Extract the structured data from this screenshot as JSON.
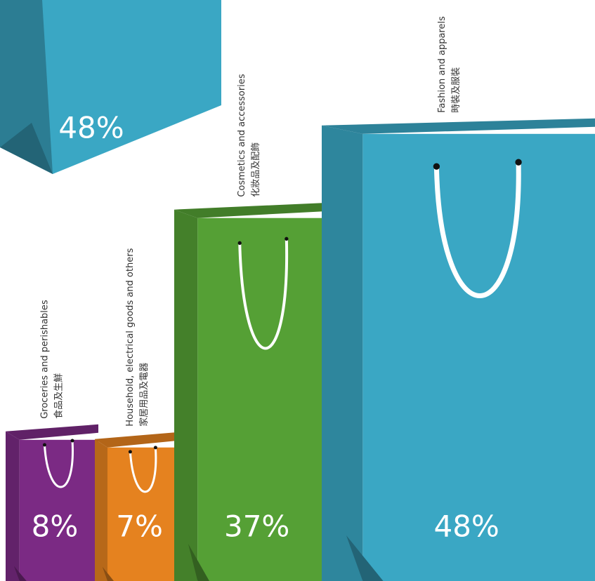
{
  "chart_data": {
    "type": "bag",
    "categories": [
      "Groceries and perishables",
      "Household, electrical goods and others",
      "Cosmetics and accessories",
      "Fashion and apparels"
    ],
    "categories_zh": [
      "食品及生鮮",
      "家居用品及電器",
      "化妝品及配飾",
      "時裝及服裝"
    ],
    "values": [
      8,
      7,
      37,
      48
    ],
    "value_labels": [
      "8%",
      "7%",
      "37%",
      "48%"
    ],
    "colors": [
      "#7b2a84",
      "#e5821f",
      "#55a035",
      "#3aa7c4"
    ]
  },
  "header_bag": {
    "value": 48,
    "value_label": "48%",
    "color": "#3aa7c4"
  }
}
